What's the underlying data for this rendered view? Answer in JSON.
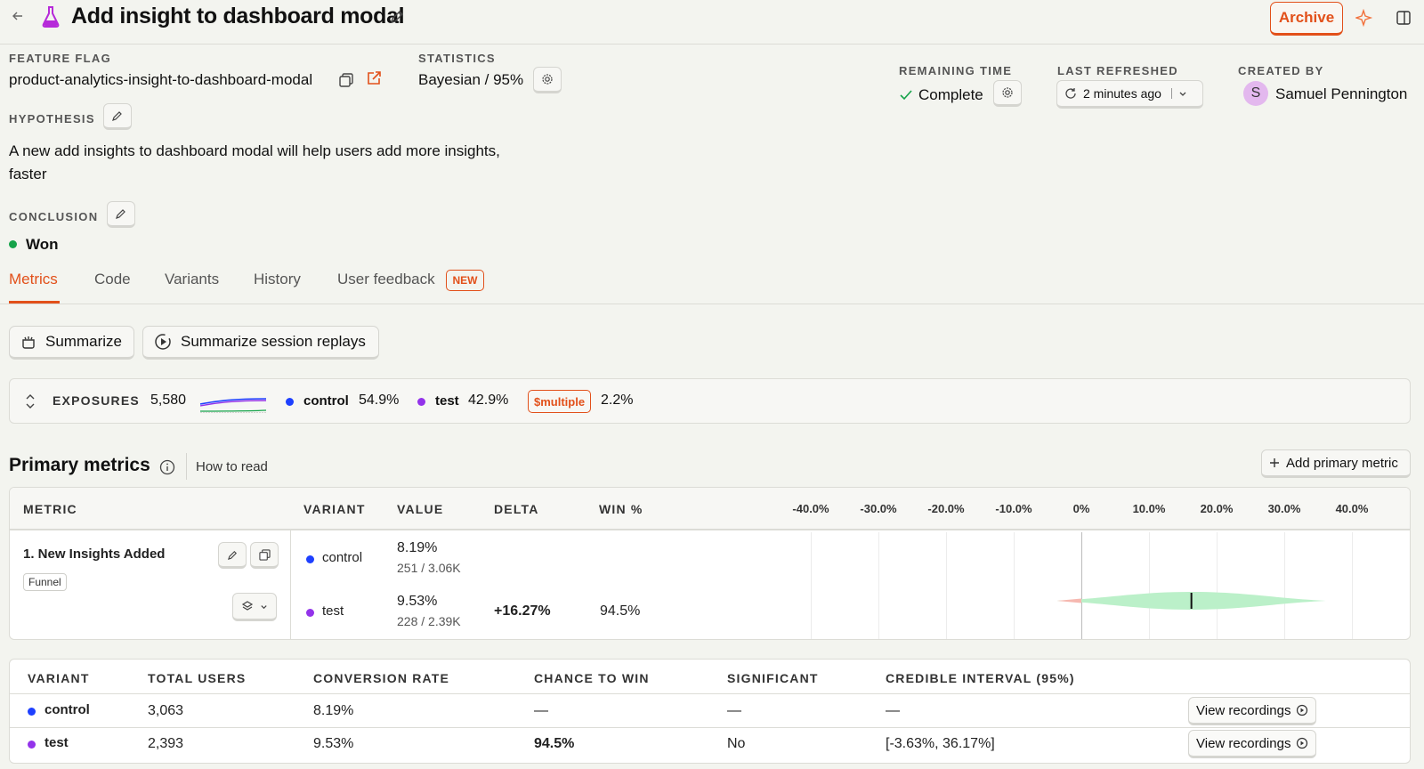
{
  "header": {
    "title": "Add insight to dashboard modal",
    "archive_label": "Archive"
  },
  "info": {
    "feature_flag_label": "FEATURE FLAG",
    "feature_flag_value": "product-analytics-insight-to-dashboard-modal",
    "statistics_label": "STATISTICS",
    "statistics_value": "Bayesian / 95%",
    "remaining_time_label": "REMAINING TIME",
    "remaining_time_value": "Complete",
    "last_refreshed_label": "LAST REFRESHED",
    "last_refreshed_value": "2 minutes ago",
    "created_by_label": "CREATED BY",
    "created_by_initial": "S",
    "created_by_name": "Samuel Pennington",
    "hypothesis_label": "HYPOTHESIS",
    "hypothesis_line1": "A new add insights to dashboard modal will help users add more insights,",
    "hypothesis_line2": "faster",
    "conclusion_label": "CONCLUSION",
    "conclusion_value": "Won"
  },
  "tabs": [
    {
      "label": "Metrics"
    },
    {
      "label": "Code"
    },
    {
      "label": "Variants"
    },
    {
      "label": "History"
    },
    {
      "label": "User feedback"
    }
  ],
  "new_badge": "NEW",
  "actions": {
    "summarize": "Summarize",
    "summarize_replays": "Summarize session replays"
  },
  "exposures": {
    "label": "EXPOSURES",
    "total": "5,580",
    "control_name": "control",
    "control_pct": "54.9%",
    "test_name": "test",
    "test_pct": "42.9%",
    "multiple_name": "$multiple",
    "multiple_pct": "2.2%"
  },
  "primary": {
    "title": "Primary metrics",
    "how_to_read": "How to read",
    "add_metric": "Add primary metric"
  },
  "metrics_table": {
    "headers": {
      "metric": "METRIC",
      "variant": "VARIANT",
      "value": "VALUE",
      "delta": "DELTA",
      "win": "WIN %"
    },
    "axis_ticks": [
      "-40.0%",
      "-30.0%",
      "-20.0%",
      "-10.0%",
      "0%",
      "10.0%",
      "20.0%",
      "30.0%",
      "40.0%"
    ],
    "metric_name": "1. New Insights Added",
    "metric_type": "Funnel",
    "rows": [
      {
        "variant": "control",
        "value": "8.19%",
        "detail": "251 / 3.06K",
        "delta": "",
        "win": ""
      },
      {
        "variant": "test",
        "value": "9.53%",
        "detail": "228 / 2.39K",
        "delta": "+16.27%",
        "win": "94.5%"
      }
    ]
  },
  "results_table": {
    "headers": {
      "variant": "VARIANT",
      "total_users": "TOTAL USERS",
      "conversion_rate": "CONVERSION RATE",
      "chance_to_win": "CHANCE TO WIN",
      "significant": "SIGNIFICANT",
      "credible_interval": "CREDIBLE INTERVAL (95%)"
    },
    "rows": [
      {
        "variant": "control",
        "total_users": "3,063",
        "conversion_rate": "8.19%",
        "chance_to_win": "—",
        "significant": "—",
        "credible_interval": "—",
        "action": "View recordings"
      },
      {
        "variant": "test",
        "total_users": "2,393",
        "conversion_rate": "9.53%",
        "chance_to_win": "94.5%",
        "significant": "No",
        "credible_interval": "[-3.63%, 36.17%]",
        "action": "View recordings"
      }
    ]
  },
  "colors": {
    "accent": "#e2501a",
    "control": "#1e40ff",
    "test": "#9333ea",
    "won": "#16a34a",
    "interval": "#bbf0c9"
  }
}
